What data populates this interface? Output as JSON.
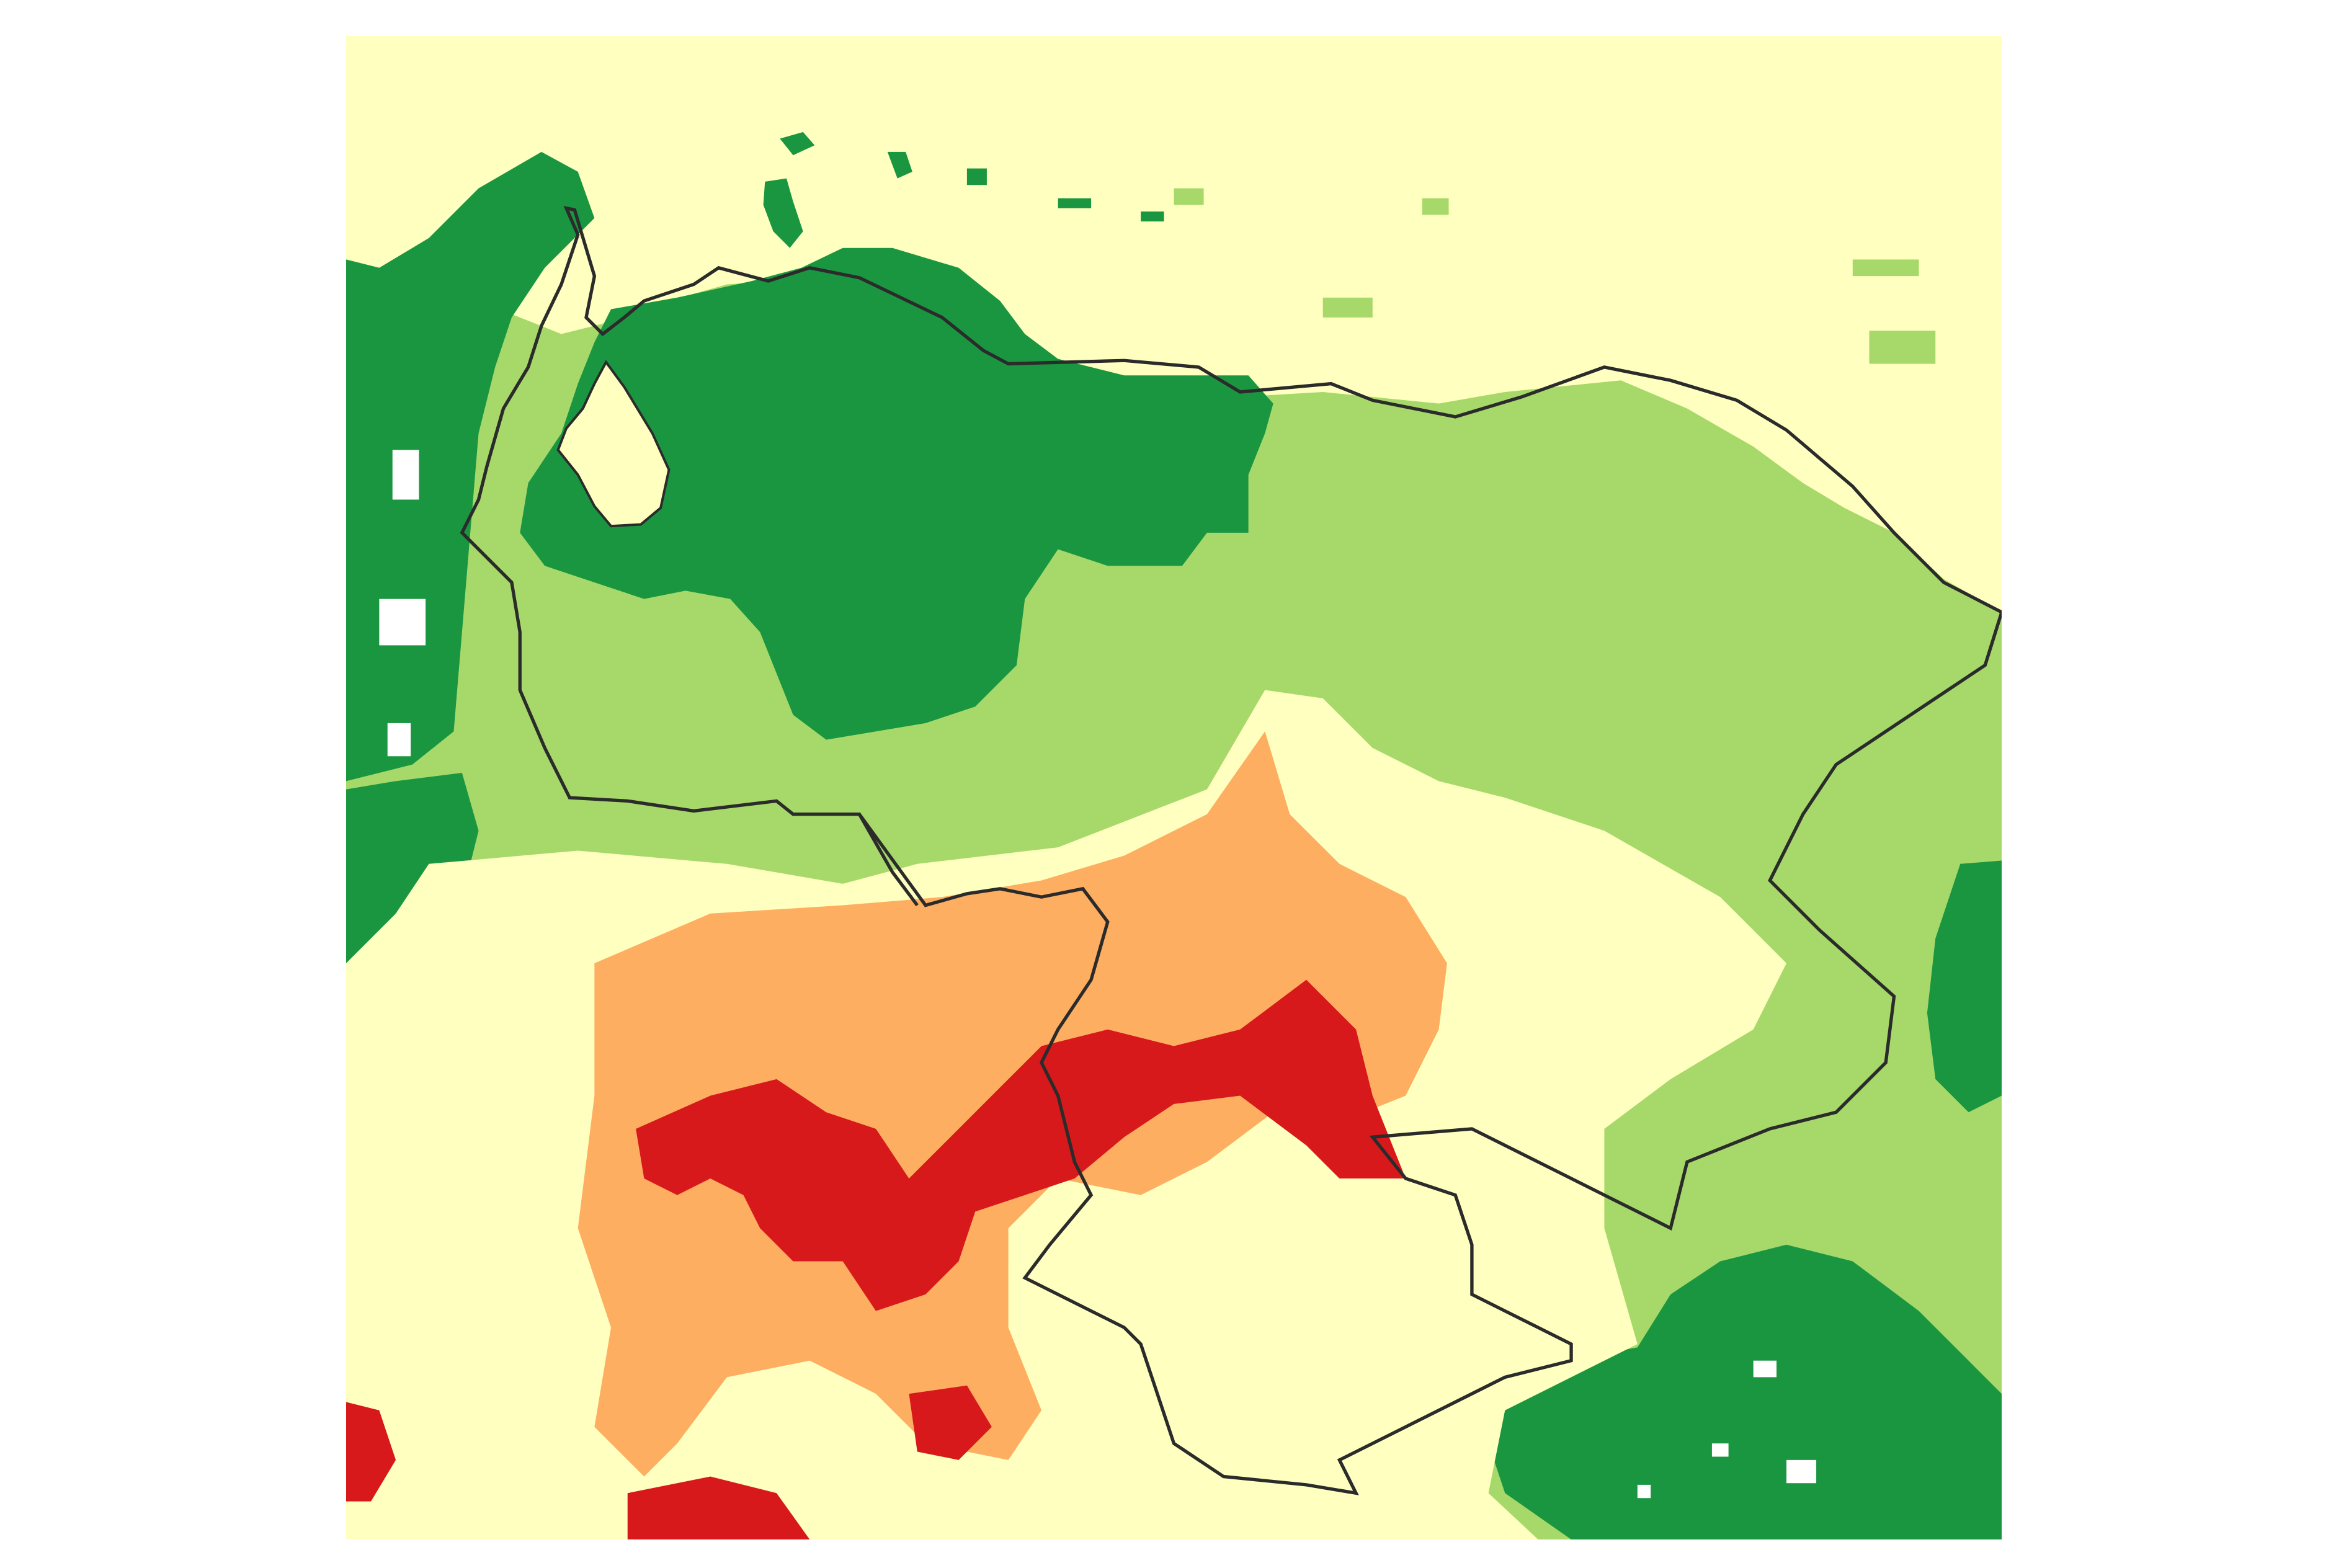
{
  "map": {
    "legend_visible": false,
    "palette": {
      "class_1_dark_green": "#1a9641",
      "class_2_light_green": "#a6d96a",
      "class_3_pale_yellow": "#ffffc0",
      "class_4_orange": "#fdae61",
      "class_5_red": "#d7191c",
      "no_data": "#ffffff",
      "boundary_line": "#2b2b2b"
    }
  }
}
